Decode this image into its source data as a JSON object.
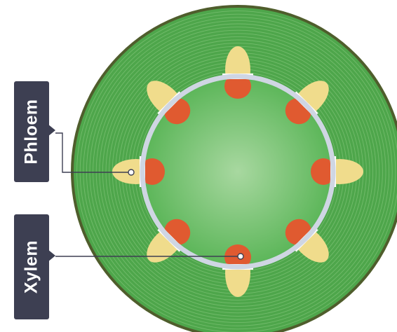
{
  "labels": {
    "phloem": "Phloem",
    "xylem": "Xylem"
  },
  "colors": {
    "cortex": "#4ea64b",
    "cortex_outline": "#4f5d2c",
    "pith_center": "#a8d8a0",
    "pith_edge": "#5cb659",
    "cambium_ring": "#cfd6e3",
    "phloem": "#f0dc8c",
    "xylem": "#e05a30",
    "leader_line": "#3d3f52",
    "label_box": "#3d3f52"
  },
  "vascular_bundle_count": 8
}
